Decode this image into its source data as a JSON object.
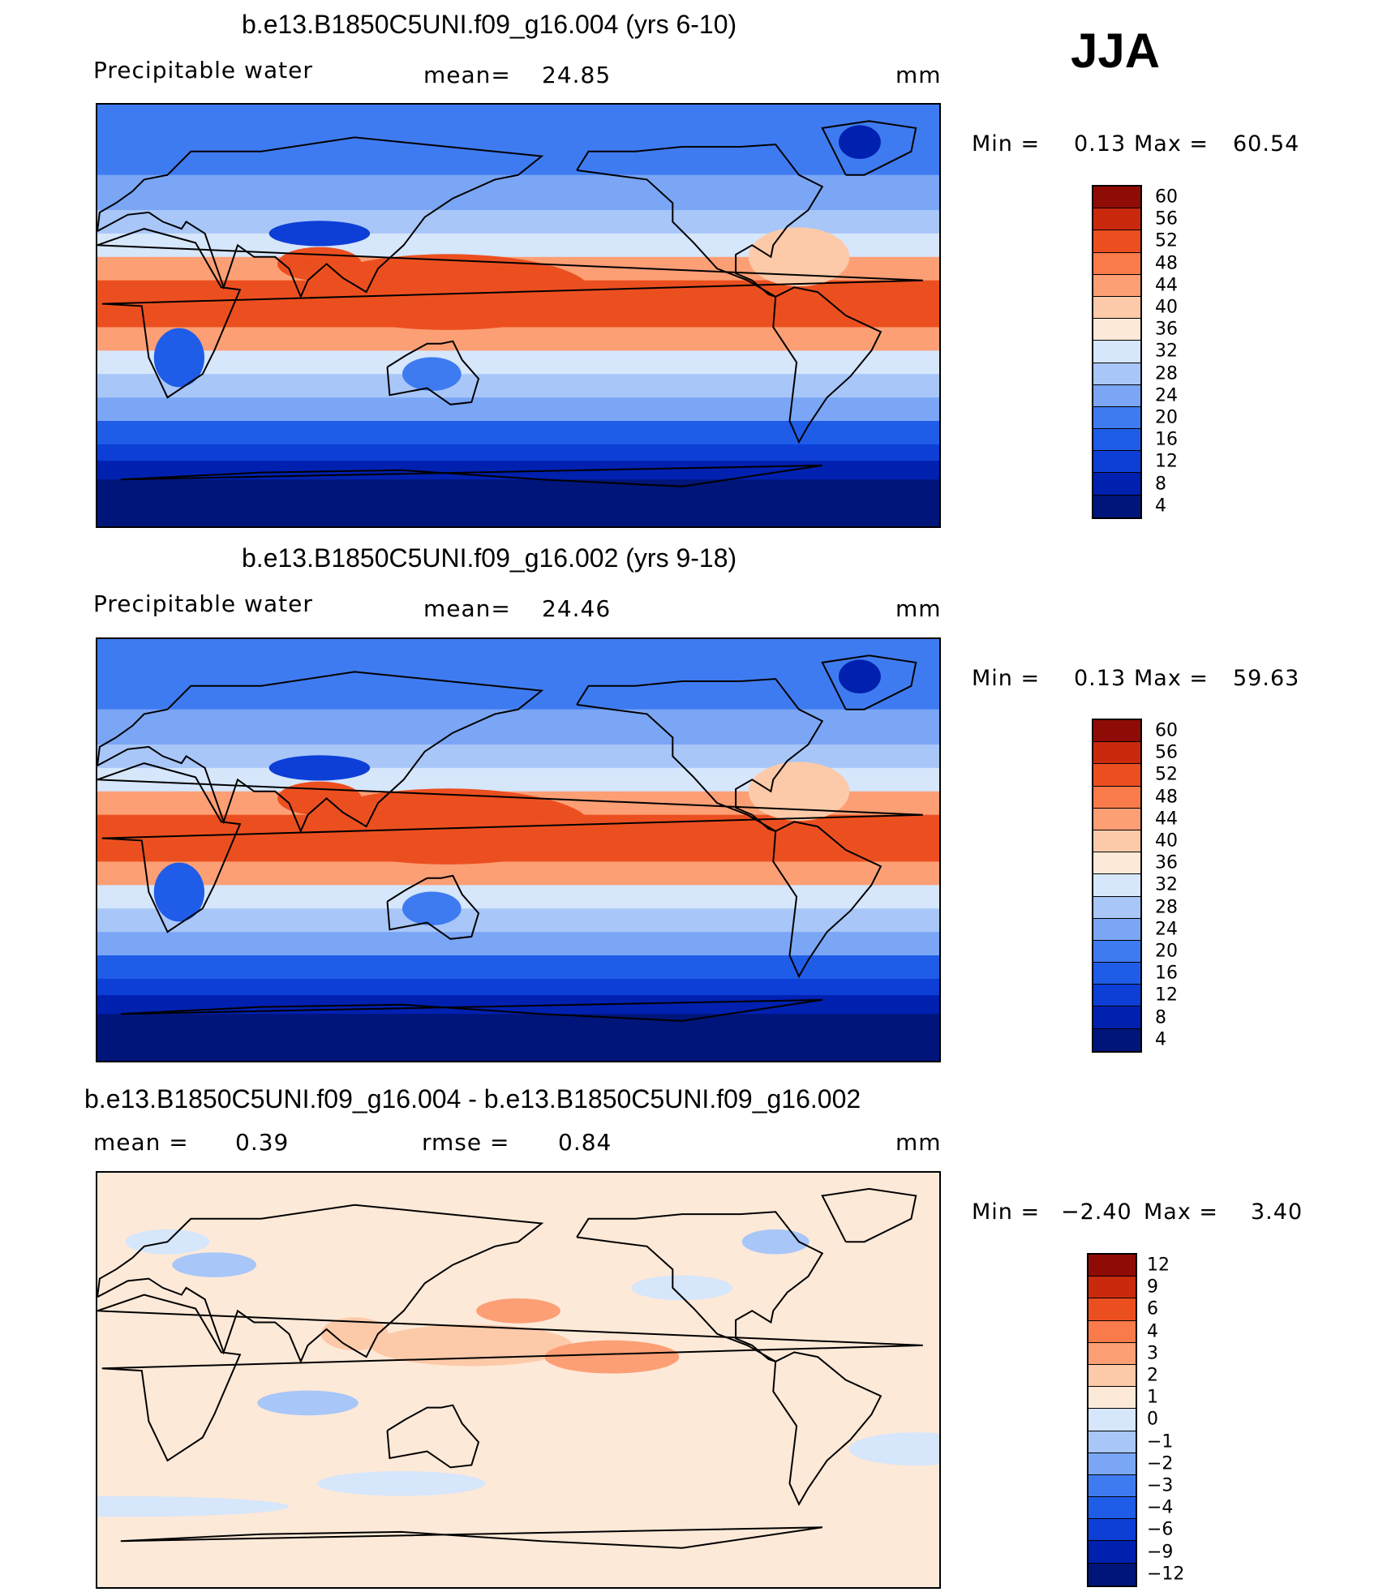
{
  "season": "JJA",
  "colors": {
    "abs_scale": [
      "#00157a",
      "#0020b0",
      "#0d3fd6",
      "#1f5de8",
      "#3f7bf0",
      "#7aa6f5",
      "#a8c6f8",
      "#d6e6fb",
      "#fde9d8",
      "#fdcaa9",
      "#fc9f75",
      "#f97a4a",
      "#ec4f1f",
      "#c92a0e",
      "#8f0c06"
    ],
    "diff_scale": [
      "#00157a",
      "#0020b0",
      "#0d3fd6",
      "#1f5de8",
      "#3f7bf0",
      "#7aa6f5",
      "#a8c6f8",
      "#d6e6fb",
      "#fde9d8",
      "#fdcaa9",
      "#fc9f75",
      "#f97a4a",
      "#ec4f1f",
      "#c92a0e",
      "#8f0c06"
    ]
  },
  "panels": [
    {
      "title": "b.e13.B1850C5UNI.f09_g16.004 (yrs 6-10)",
      "left_label": "Precipitable  water",
      "center_label": "mean=",
      "center_value": "24.85",
      "right_label": "mm",
      "min_label": "Min  =",
      "min_value": "0.13",
      "max_label": "Max  =",
      "max_value": "60.54",
      "levels": [
        "60",
        "56",
        "52",
        "48",
        "44",
        "40",
        "36",
        "32",
        "28",
        "24",
        "20",
        "16",
        "12",
        "8",
        "4"
      ],
      "map_type": "abs"
    },
    {
      "title": "b.e13.B1850C5UNI.f09_g16.002 (yrs 9-18)",
      "left_label": "Precipitable  water",
      "center_label": "mean=",
      "center_value": "24.46",
      "right_label": "mm",
      "min_label": "Min  =",
      "min_value": "0.13",
      "max_label": "Max  =",
      "max_value": "59.63",
      "levels": [
        "60",
        "56",
        "52",
        "48",
        "44",
        "40",
        "36",
        "32",
        "28",
        "24",
        "20",
        "16",
        "12",
        "8",
        "4"
      ],
      "map_type": "abs"
    },
    {
      "title": "b.e13.B1850C5UNI.f09_g16.004 - b.e13.B1850C5UNI.f09_g16.002",
      "left_label": "mean  =",
      "left_value": "0.39",
      "center_label": "rmse  =",
      "center_value": "0.84",
      "right_label": "mm",
      "min_label": "Min  =",
      "min_value": "−2.40",
      "max_label": "Max  =",
      "max_value": "3.40",
      "levels": [
        "12",
        "9",
        "6",
        "4",
        "3",
        "2",
        "1",
        "0",
        "−1",
        "−2",
        "−3",
        "−4",
        "−6",
        "−9",
        "−12"
      ],
      "map_type": "diff"
    }
  ]
}
